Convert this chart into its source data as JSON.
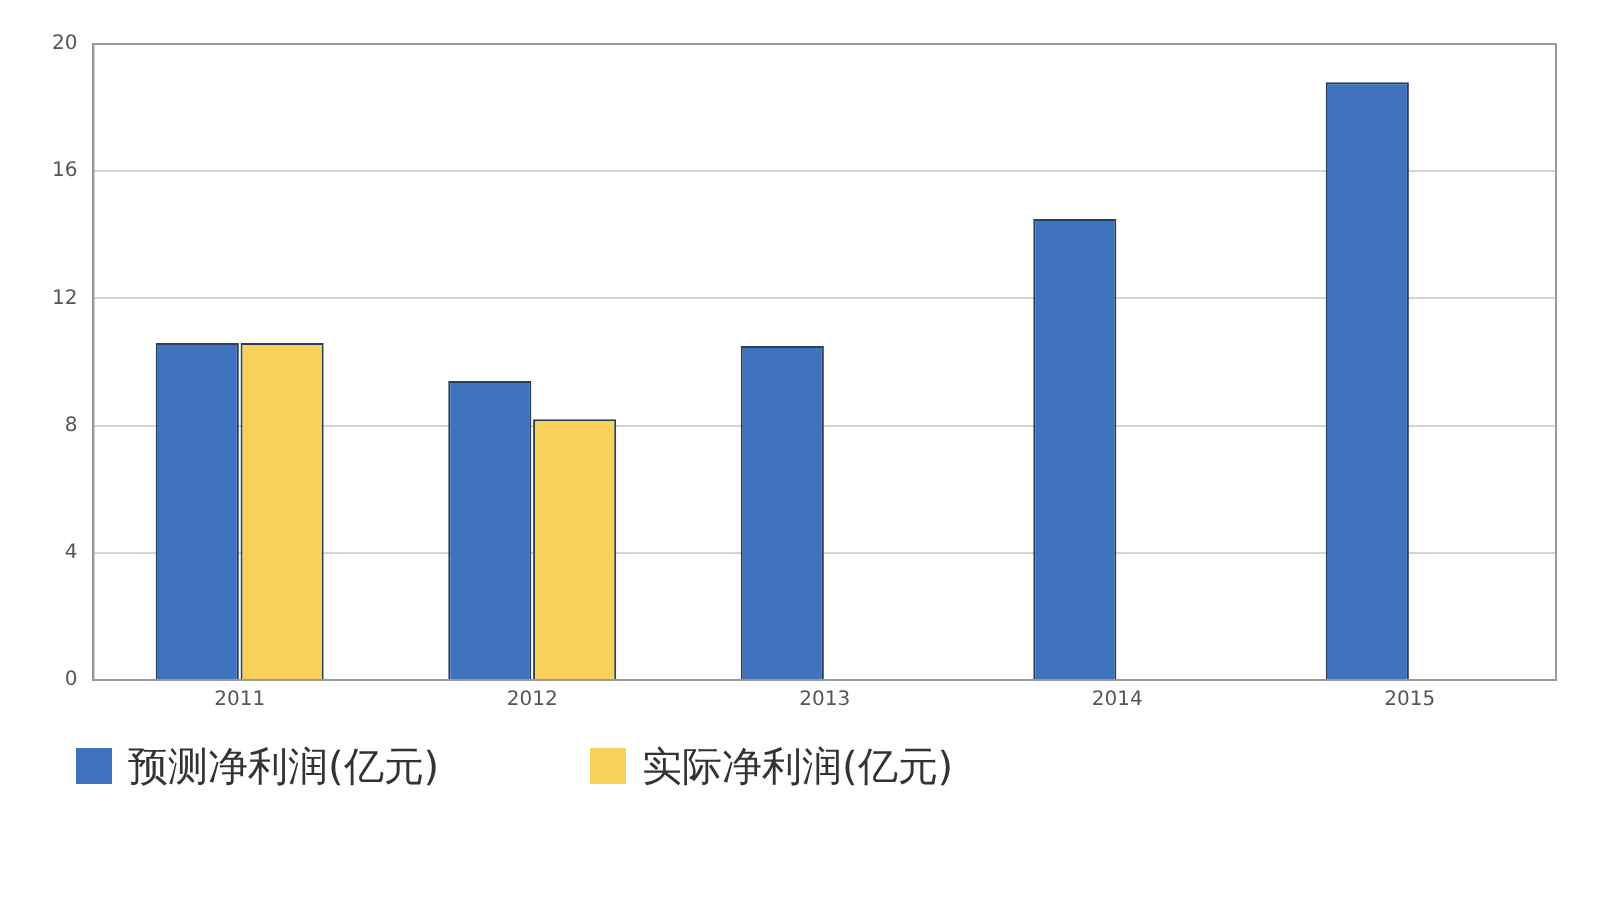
{
  "chart_data": {
    "type": "bar",
    "categories": [
      "2011",
      "2012",
      "2013",
      "2014",
      "2015"
    ],
    "series": [
      {
        "name": "预测净利润(亿元)",
        "color": "#3f73bd",
        "values": [
          10.6,
          9.4,
          10.5,
          14.5,
          18.8
        ]
      },
      {
        "name": "实际净利润(亿元)",
        "color": "#f9d05a",
        "values": [
          10.6,
          8.2,
          null,
          null,
          null
        ]
      }
    ],
    "ylim": [
      0,
      20
    ],
    "yticks": [
      0,
      4,
      8,
      12,
      16,
      20
    ],
    "grid": "y",
    "legend": "bottom left"
  }
}
